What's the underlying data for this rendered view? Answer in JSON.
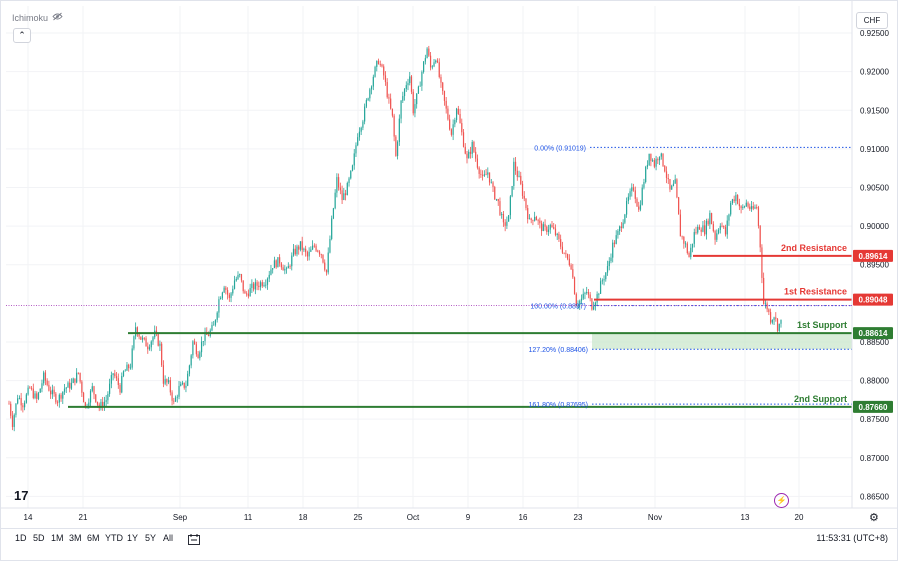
{
  "indicator": {
    "name": "Ichimoku",
    "visibility_icon": "eye-off-icon",
    "collapse_icon": "chevron-up-icon"
  },
  "currency": "CHF",
  "logo_text": "17",
  "range_buttons": [
    "1D",
    "5D",
    "1M",
    "3M",
    "6M",
    "YTD",
    "1Y",
    "5Y",
    "All"
  ],
  "compare_icon": "calendar-range-icon",
  "footer_time": "11:53:31 (UTC+8)",
  "settings_icon": "gear-icon",
  "alert_icon": "lightning-icon",
  "colors": {
    "up": "#26a69a",
    "down": "#ef5350",
    "resistance": "#e53935",
    "support": "#2e7d32",
    "fib": "#1e53e5",
    "crosshair": "#9c27b0",
    "support_zone": "#c8e6c9"
  },
  "chart_data": {
    "type": "candlestick",
    "y_axis": {
      "ticks": [
        "0.92500",
        "0.92000",
        "0.91500",
        "0.91000",
        "0.90500",
        "0.90000",
        "0.89500",
        "0.88500",
        "0.88000",
        "0.87500",
        "0.87000",
        "0.86500"
      ],
      "ylim": [
        0.8635,
        0.9285
      ]
    },
    "x_axis": {
      "ticks": [
        "14",
        "21",
        "Sep",
        "11",
        "18",
        "25",
        "Oct",
        "9",
        "16",
        "23",
        "Nov",
        "13",
        "20"
      ]
    },
    "levels": [
      {
        "name": "2nd Resistance",
        "value": "0.89614",
        "kind": "resistance"
      },
      {
        "name": "1st Resistance",
        "value": "0.89048",
        "kind": "resistance"
      },
      {
        "name": "1st Support",
        "value": "0.88614",
        "kind": "support"
      },
      {
        "name": "2nd Support",
        "value": "0.87660",
        "kind": "support"
      }
    ],
    "fib_levels": [
      {
        "label": "0.00% (0.91019)",
        "value": 0.91019
      },
      {
        "label": "100.00% (0.8897)",
        "value": 0.8897
      },
      {
        "label": "127.20% (0.88406)",
        "value": 0.88406
      },
      {
        "label": "161.80% (0.87695)",
        "value": 0.87695
      }
    ],
    "crosshair_value": 0.8897,
    "close_path": [
      [
        0,
        0.877
      ],
      [
        2,
        0.8745
      ],
      [
        5,
        0.878
      ],
      [
        8,
        0.877
      ],
      [
        12,
        0.879
      ],
      [
        16,
        0.8775
      ],
      [
        20,
        0.8805
      ],
      [
        24,
        0.8785
      ],
      [
        28,
        0.8775
      ],
      [
        32,
        0.879
      ],
      [
        36,
        0.8795
      ],
      [
        40,
        0.881
      ],
      [
        44,
        0.8765
      ],
      [
        48,
        0.879
      ],
      [
        52,
        0.8765
      ],
      [
        56,
        0.8775
      ],
      [
        60,
        0.881
      ],
      [
        64,
        0.879
      ],
      [
        66,
        0.881
      ],
      [
        70,
        0.882
      ],
      [
        73,
        0.887
      ],
      [
        76,
        0.8855
      ],
      [
        80,
        0.8845
      ],
      [
        84,
        0.886
      ],
      [
        87,
        0.8845
      ],
      [
        89,
        0.88
      ],
      [
        92,
        0.8795
      ],
      [
        95,
        0.877
      ],
      [
        98,
        0.879
      ],
      [
        102,
        0.8795
      ],
      [
        104,
        0.882
      ],
      [
        106,
        0.885
      ],
      [
        109,
        0.8835
      ],
      [
        112,
        0.8855
      ],
      [
        115,
        0.886
      ],
      [
        118,
        0.887
      ],
      [
        121,
        0.8905
      ],
      [
        124,
        0.8925
      ],
      [
        127,
        0.8905
      ],
      [
        130,
        0.893
      ],
      [
        133,
        0.8935
      ],
      [
        136,
        0.891
      ],
      [
        140,
        0.892
      ],
      [
        144,
        0.8925
      ],
      [
        148,
        0.893
      ],
      [
        152,
        0.895
      ],
      [
        156,
        0.8955
      ],
      [
        160,
        0.894
      ],
      [
        164,
        0.8965
      ],
      [
        168,
        0.8975
      ],
      [
        172,
        0.896
      ],
      [
        176,
        0.8975
      ],
      [
        180,
        0.8965
      ],
      [
        183,
        0.894
      ],
      [
        186,
        0.9005
      ],
      [
        189,
        0.906
      ],
      [
        192,
        0.9035
      ],
      [
        195,
        0.905
      ],
      [
        198,
        0.9075
      ],
      [
        201,
        0.912
      ],
      [
        204,
        0.914
      ],
      [
        207,
        0.917
      ],
      [
        210,
        0.9195
      ],
      [
        213,
        0.9215
      ],
      [
        216,
        0.9195
      ],
      [
        219,
        0.916
      ],
      [
        221,
        0.914
      ],
      [
        223,
        0.909
      ],
      [
        226,
        0.916
      ],
      [
        229,
        0.9185
      ],
      [
        231,
        0.9195
      ],
      [
        233,
        0.915
      ],
      [
        236,
        0.9175
      ],
      [
        238,
        0.92
      ],
      [
        241,
        0.923
      ],
      [
        243,
        0.9205
      ],
      [
        246,
        0.922
      ],
      [
        249,
        0.918
      ],
      [
        252,
        0.915
      ],
      [
        255,
        0.912
      ],
      [
        258,
        0.9155
      ],
      [
        261,
        0.912
      ],
      [
        264,
        0.9085
      ],
      [
        267,
        0.9105
      ],
      [
        270,
        0.908
      ],
      [
        273,
        0.906
      ],
      [
        276,
        0.907
      ],
      [
        279,
        0.9045
      ],
      [
        282,
        0.903
      ],
      [
        285,
        0.9
      ],
      [
        288,
        0.901
      ],
      [
        291,
        0.908
      ],
      [
        294,
        0.906
      ],
      [
        297,
        0.9035
      ],
      [
        300,
        0.9005
      ],
      [
        303,
        0.9015
      ],
      [
        306,
        0.9
      ],
      [
        309,
        0.8995
      ],
      [
        312,
        0.9
      ],
      [
        315,
        0.899
      ],
      [
        318,
        0.8975
      ],
      [
        321,
        0.896
      ],
      [
        324,
        0.895
      ],
      [
        327,
        0.89
      ],
      [
        330,
        0.8905
      ],
      [
        333,
        0.8915
      ],
      [
        336,
        0.8897
      ],
      [
        339,
        0.891
      ],
      [
        342,
        0.893
      ],
      [
        345,
        0.8945
      ],
      [
        348,
        0.8975
      ],
      [
        351,
        0.899
      ],
      [
        354,
        0.901
      ],
      [
        357,
        0.9035
      ],
      [
        360,
        0.905
      ],
      [
        363,
        0.902
      ],
      [
        366,
        0.906
      ],
      [
        369,
        0.9095
      ],
      [
        372,
        0.908
      ],
      [
        375,
        0.9095
      ],
      [
        378,
        0.9075
      ],
      [
        381,
        0.9045
      ],
      [
        384,
        0.9055
      ],
      [
        387,
        0.899
      ],
      [
        390,
        0.8975
      ],
      [
        392,
        0.896
      ],
      [
        395,
        0.899
      ],
      [
        398,
        0.9
      ],
      [
        401,
        0.8995
      ],
      [
        404,
        0.9015
      ],
      [
        407,
        0.8985
      ],
      [
        410,
        0.9005
      ],
      [
        413,
        0.899
      ],
      [
        416,
        0.903
      ],
      [
        419,
        0.904
      ],
      [
        422,
        0.902
      ],
      [
        425,
        0.903
      ],
      [
        428,
        0.902
      ],
      [
        431,
        0.9025
      ],
      [
        433,
        0.8975
      ],
      [
        435,
        0.89
      ],
      [
        437,
        0.8895
      ],
      [
        439,
        0.888
      ],
      [
        441,
        0.8885
      ],
      [
        443,
        0.887
      ],
      [
        445,
        0.8875
      ]
    ]
  }
}
